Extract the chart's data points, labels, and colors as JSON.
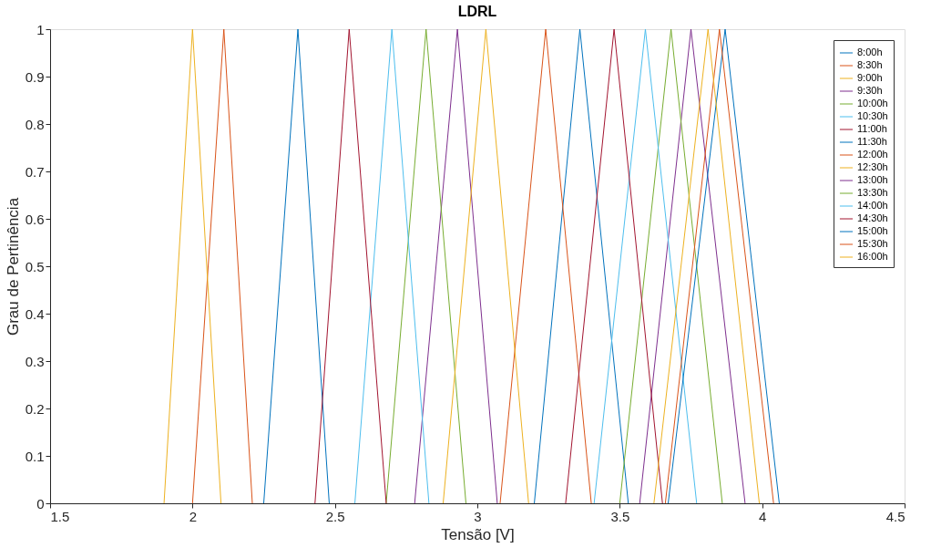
{
  "chart_data": {
    "type": "line",
    "title": "LDRL",
    "xlabel": "Tensão [V]",
    "ylabel": "Grau de Pertinência",
    "xlim": [
      1.5,
      4.5
    ],
    "ylim": [
      0,
      1
    ],
    "xticks": [
      1.5,
      2,
      2.5,
      3,
      3.5,
      4,
      4.5
    ],
    "yticks": [
      0,
      0.1,
      0.2,
      0.3,
      0.4,
      0.5,
      0.6,
      0.7,
      0.8,
      0.9,
      1
    ],
    "grid": false,
    "legend": "top right",
    "marker": "none",
    "line_style": "solid",
    "series": [
      {
        "name": "8:00h",
        "color": "#0072bd",
        "x": [
          2.25,
          2.37,
          2.48
        ],
        "values": [
          0,
          1,
          0
        ]
      },
      {
        "name": "8:30h",
        "color": "#d95319",
        "x": [
          2.0,
          2.11,
          2.21
        ],
        "values": [
          0,
          1,
          0
        ]
      },
      {
        "name": "9:00h",
        "color": "#edb120",
        "x": [
          1.9,
          2.0,
          2.1
        ],
        "values": [
          0,
          1,
          0
        ]
      },
      {
        "name": "9:30h",
        "color": "#7e2f8e",
        "x": [
          2.78,
          2.93,
          3.07
        ],
        "values": [
          0,
          1,
          0
        ]
      },
      {
        "name": "10:00h",
        "color": "#77ac30",
        "x": [
          2.68,
          2.82,
          2.96
        ],
        "values": [
          0,
          1,
          0
        ]
      },
      {
        "name": "10:30h",
        "color": "#4dbeee",
        "x": [
          2.57,
          2.7,
          2.83
        ],
        "values": [
          0,
          1,
          0
        ]
      },
      {
        "name": "11:00h",
        "color": "#a2142f",
        "x": [
          2.43,
          2.55,
          2.68
        ],
        "values": [
          0,
          1,
          0
        ]
      },
      {
        "name": "11:30h",
        "color": "#0072bd",
        "x": [
          3.2,
          3.36,
          3.53
        ],
        "values": [
          0,
          1,
          0
        ]
      },
      {
        "name": "12:00h",
        "color": "#d95319",
        "x": [
          3.08,
          3.24,
          3.4
        ],
        "values": [
          0,
          1,
          0
        ]
      },
      {
        "name": "12:30h",
        "color": "#edb120",
        "x": [
          2.88,
          3.03,
          3.18
        ],
        "values": [
          0,
          1,
          0
        ]
      },
      {
        "name": "13:00h",
        "color": "#7e2f8e",
        "x": [
          3.57,
          3.75,
          3.94
        ],
        "values": [
          0,
          1,
          0
        ]
      },
      {
        "name": "13:30h",
        "color": "#77ac30",
        "x": [
          3.5,
          3.68,
          3.86
        ],
        "values": [
          0,
          1,
          0
        ]
      },
      {
        "name": "14:00h",
        "color": "#4dbeee",
        "x": [
          3.41,
          3.59,
          3.77
        ],
        "values": [
          0,
          1,
          0
        ]
      },
      {
        "name": "14:30h",
        "color": "#a2142f",
        "x": [
          3.31,
          3.48,
          3.65
        ],
        "values": [
          0,
          1,
          0
        ]
      },
      {
        "name": "15:00h",
        "color": "#0072bd",
        "x": [
          3.67,
          3.87,
          4.06
        ],
        "values": [
          0,
          1,
          0
        ]
      },
      {
        "name": "15:30h",
        "color": "#d95319",
        "x": [
          3.66,
          3.85,
          4.04
        ],
        "values": [
          0,
          1,
          0
        ]
      },
      {
        "name": "16:00h",
        "color": "#edb120",
        "x": [
          3.62,
          3.81,
          3.99
        ],
        "values": [
          0,
          1,
          0
        ]
      }
    ]
  }
}
